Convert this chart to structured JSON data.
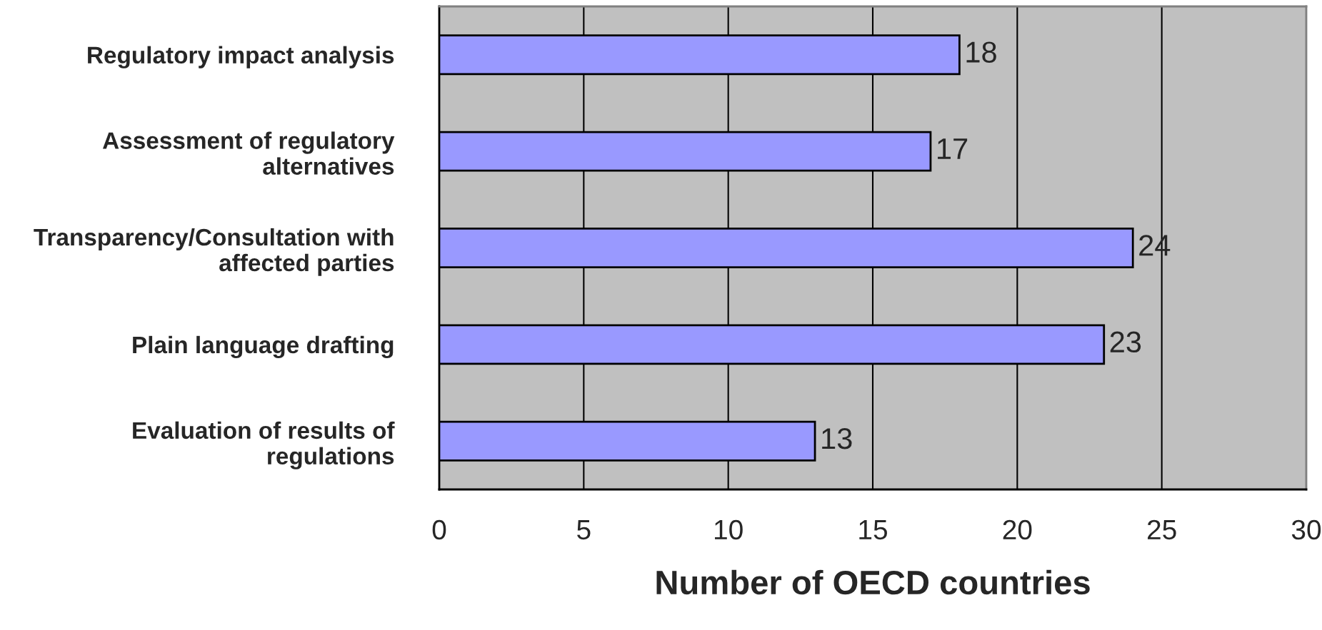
{
  "chart_data": {
    "type": "bar",
    "orientation": "horizontal",
    "categories": [
      "Regulatory impact analysis",
      "Assessment of regulatory alternatives",
      "Transparency/Consultation with affected parties",
      "Plain language drafting",
      "Evaluation of results of regulations"
    ],
    "values": [
      18,
      17,
      24,
      23,
      13
    ],
    "color": "#9999ff",
    "data_labels": true,
    "xlabel": "Number of OECD countries",
    "xlim": [
      0,
      30
    ],
    "xticks": [
      0,
      5,
      10,
      15,
      20,
      25,
      30
    ],
    "grid": "x",
    "legend": false
  }
}
